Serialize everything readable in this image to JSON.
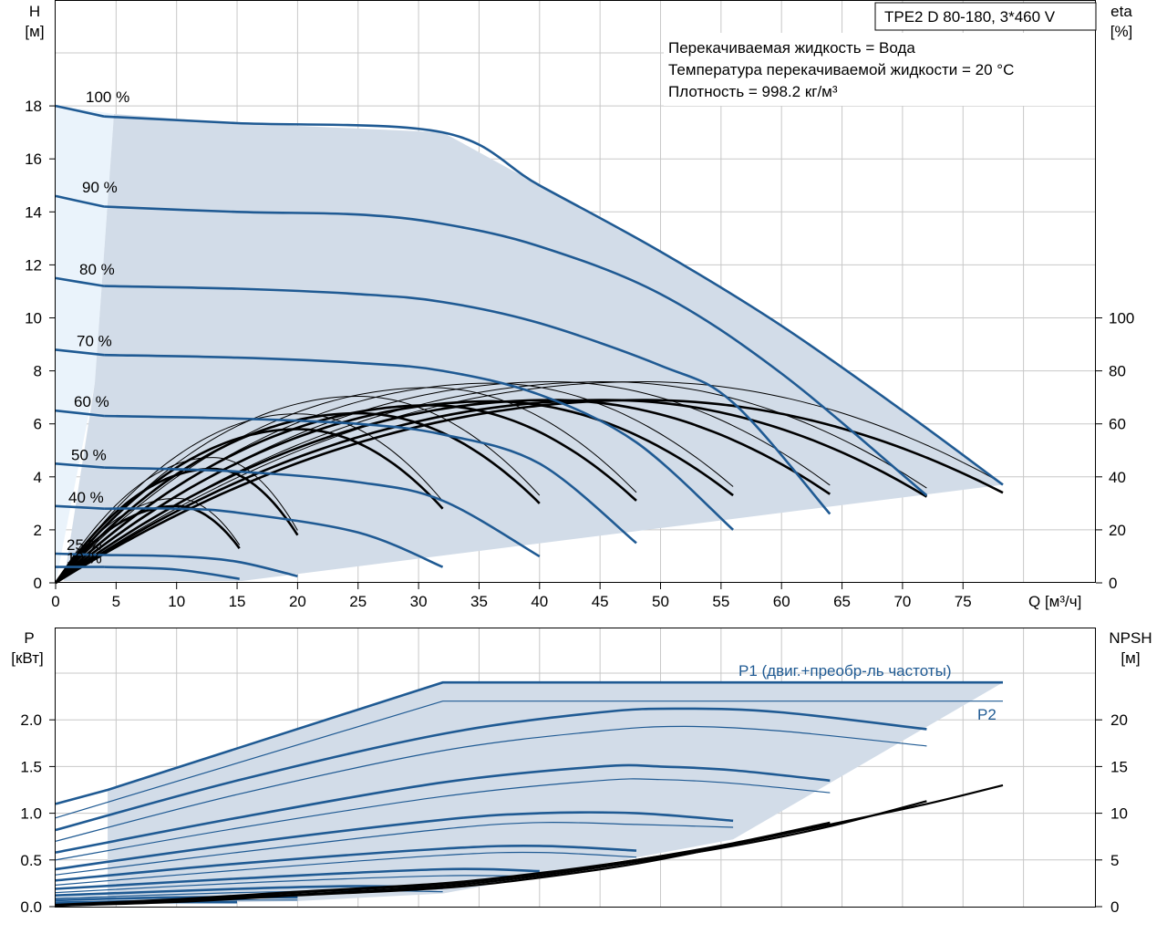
{
  "header": {
    "model": "TPE2 D 80-180, 3*460 V",
    "liquid_info": [
      "Перекачиваемая жидкость = Вода",
      "Температура перекачиваемой жидкости = 20 °C",
      "Плотность = 998.2 кг/м³"
    ]
  },
  "chart_data": [
    {
      "type": "line",
      "name": "head-efficiency",
      "y_left_label": [
        "H",
        "[м]"
      ],
      "y_right_label": [
        "eta",
        "[%]"
      ],
      "x_label": "Q [м³/ч]",
      "xlim": [
        0,
        80
      ],
      "ylim_left": [
        0,
        20
      ],
      "ylim_right": [
        0,
        100
      ],
      "x_ticks": [
        "0",
        "5",
        "10",
        "15",
        "20",
        "25",
        "30",
        "35",
        "40",
        "45",
        "50",
        "55",
        "60",
        "65",
        "70",
        "75"
      ],
      "y_left_ticks": [
        "0",
        "2",
        "4",
        "6",
        "8",
        "10",
        "12",
        "14",
        "16",
        "18"
      ],
      "y_right_ticks": [
        "0",
        "20",
        "40",
        "60",
        "80",
        "100"
      ],
      "speed_labels": [
        {
          "text": "100 %",
          "h": 18.0
        },
        {
          "text": "90 %",
          "h": 14.6
        },
        {
          "text": "80 %",
          "h": 11.5
        },
        {
          "text": "70 %",
          "h": 8.8
        },
        {
          "text": "60 %",
          "h": 6.5
        },
        {
          "text": "50 %",
          "h": 4.5
        },
        {
          "text": "40 %",
          "h": 2.9
        },
        {
          "text": "25 %",
          "h": 1.1
        },
        {
          "text": "10 %",
          "h": 0.6
        }
      ],
      "head_curves": [
        {
          "name": "100 %",
          "qmax": 78.3,
          "points": [
            [
              0,
              18.0
            ],
            [
              4,
              17.6
            ],
            [
              15,
              17.35
            ],
            [
              32,
              17.0
            ],
            [
              40,
              15.0
            ],
            [
              50,
              12.5
            ],
            [
              60,
              9.7
            ],
            [
              70,
              6.5
            ],
            [
              78.3,
              3.7
            ]
          ]
        },
        {
          "name": "90 %",
          "qmax": 72.0,
          "points": [
            [
              0,
              14.6
            ],
            [
              4,
              14.2
            ],
            [
              15,
              14.0
            ],
            [
              25,
              13.9
            ],
            [
              32,
              13.55
            ],
            [
              40,
              12.7
            ],
            [
              50,
              10.9
            ],
            [
              60,
              7.9
            ],
            [
              72,
              3.3
            ]
          ]
        },
        {
          "name": "80 %",
          "qmax": 64.0,
          "points": [
            [
              0,
              11.5
            ],
            [
              4,
              11.2
            ],
            [
              15,
              11.1
            ],
            [
              25,
              10.9
            ],
            [
              32,
              10.6
            ],
            [
              40,
              9.8
            ],
            [
              50,
              8.2
            ],
            [
              56,
              6.8
            ],
            [
              64,
              2.6
            ]
          ]
        },
        {
          "name": "70 %",
          "qmax": 56.0,
          "points": [
            [
              0,
              8.8
            ],
            [
              4,
              8.6
            ],
            [
              15,
              8.5
            ],
            [
              25,
              8.3
            ],
            [
              32,
              8.0
            ],
            [
              40,
              7.1
            ],
            [
              48,
              5.3
            ],
            [
              56,
              2.0
            ]
          ]
        },
        {
          "name": "60 %",
          "qmax": 48.0,
          "points": [
            [
              0,
              6.5
            ],
            [
              4,
              6.3
            ],
            [
              15,
              6.2
            ],
            [
              25,
              6.0
            ],
            [
              32,
              5.6
            ],
            [
              40,
              4.5
            ],
            [
              48,
              1.5
            ]
          ]
        },
        {
          "name": "50 %",
          "qmax": 40.0,
          "points": [
            [
              0,
              4.5
            ],
            [
              4,
              4.35
            ],
            [
              15,
              4.2
            ],
            [
              25,
              3.8
            ],
            [
              32,
              3.1
            ],
            [
              40,
              1.0
            ]
          ]
        },
        {
          "name": "40 %",
          "qmax": 32.0,
          "points": [
            [
              0,
              2.9
            ],
            [
              4,
              2.8
            ],
            [
              10,
              2.8
            ],
            [
              15,
              2.65
            ],
            [
              25,
              1.9
            ],
            [
              32,
              0.6
            ]
          ]
        },
        {
          "name": "25 %",
          "qmax": 20.0,
          "points": [
            [
              0,
              1.1
            ],
            [
              4,
              1.05
            ],
            [
              10,
              1.0
            ],
            [
              15,
              0.8
            ],
            [
              20,
              0.25
            ]
          ]
        },
        {
          "name": "10 %",
          "qmax": 15.2,
          "points": [
            [
              0,
              0.6
            ],
            [
              4,
              0.6
            ],
            [
              10,
              0.5
            ],
            [
              15.2,
              0.15
            ]
          ]
        }
      ],
      "efficiency_curves": [
        {
          "qmax": 15.2,
          "peak_q": 10.0,
          "peak_eta": 29,
          "end_eta": 13
        },
        {
          "qmax": 20.0,
          "peak_q": 13.0,
          "peak_eta": 43,
          "end_eta": 18
        },
        {
          "qmax": 32.0,
          "peak_q": 20.0,
          "peak_eta": 58,
          "end_eta": 28
        },
        {
          "qmax": 40.0,
          "peak_q": 25.0,
          "peak_eta": 64,
          "end_eta": 30
        },
        {
          "qmax": 48.0,
          "peak_q": 31.0,
          "peak_eta": 67,
          "end_eta": 31
        },
        {
          "qmax": 56.0,
          "peak_q": 36.0,
          "peak_eta": 68.5,
          "end_eta": 33
        },
        {
          "qmax": 64.0,
          "peak_q": 41.0,
          "peak_eta": 69,
          "end_eta": 33.5
        },
        {
          "qmax": 72.0,
          "peak_q": 45.5,
          "peak_eta": 69,
          "end_eta": 32.5
        },
        {
          "qmax": 78.3,
          "peak_q": 48.5,
          "peak_eta": 69,
          "end_eta": 34
        }
      ]
    },
    {
      "type": "line",
      "name": "power-npsh",
      "y_left_label": [
        "P",
        "[кВт]"
      ],
      "y_right_label": [
        "NPSH",
        "[м]"
      ],
      "xlim": [
        0,
        80
      ],
      "ylim_left": [
        0,
        2.5
      ],
      "ylim_right": [
        0,
        25
      ],
      "y_left_ticks": [
        "0.0",
        "0.5",
        "1.0",
        "1.5",
        "2.0"
      ],
      "y_right_ticks": [
        "0",
        "5",
        "10",
        "15",
        "20"
      ],
      "p1_label": "P1 (двиг.+преобр-ль частоты)",
      "p2_label": "P2",
      "p1_max": {
        "points": [
          [
            0,
            1.1
          ],
          [
            4.3,
            1.25
          ],
          [
            32,
            2.4
          ],
          [
            78.3,
            2.4
          ]
        ]
      },
      "p2_max": {
        "points": [
          [
            0,
            0.95
          ],
          [
            32,
            2.2
          ],
          [
            78.3,
            2.2
          ]
        ]
      },
      "power_curves": [
        {
          "kind": "P1",
          "points": [
            [
              0,
              0.82
            ],
            [
              15,
              1.35
            ],
            [
              32,
              1.85
            ],
            [
              45,
              2.08
            ],
            [
              52,
              2.12
            ],
            [
              60,
              2.08
            ],
            [
              72,
              1.9
            ]
          ]
        },
        {
          "kind": "P2",
          "points": [
            [
              0,
              0.7
            ],
            [
              15,
              1.2
            ],
            [
              32,
              1.67
            ],
            [
              45,
              1.88
            ],
            [
              52,
              1.93
            ],
            [
              60,
              1.88
            ],
            [
              72,
              1.72
            ]
          ]
        },
        {
          "kind": "P1",
          "points": [
            [
              0,
              0.58
            ],
            [
              15,
              0.95
            ],
            [
              32,
              1.33
            ],
            [
              45,
              1.5
            ],
            [
              50,
              1.5
            ],
            [
              56,
              1.46
            ],
            [
              64,
              1.35
            ]
          ]
        },
        {
          "kind": "P2",
          "points": [
            [
              0,
              0.5
            ],
            [
              15,
              0.84
            ],
            [
              32,
              1.18
            ],
            [
              45,
              1.35
            ],
            [
              50,
              1.36
            ],
            [
              56,
              1.32
            ],
            [
              64,
              1.22
            ]
          ]
        },
        {
          "kind": "P1",
          "points": [
            [
              0,
              0.4
            ],
            [
              15,
              0.67
            ],
            [
              32,
              0.93
            ],
            [
              40,
              1.0
            ],
            [
              48,
              1.0
            ],
            [
              56,
              0.92
            ]
          ]
        },
        {
          "kind": "P2",
          "points": [
            [
              0,
              0.34
            ],
            [
              15,
              0.58
            ],
            [
              32,
              0.83
            ],
            [
              40,
              0.9
            ],
            [
              48,
              0.88
            ],
            [
              56,
              0.85
            ]
          ]
        },
        {
          "kind": "P1",
          "points": [
            [
              0,
              0.28
            ],
            [
              15,
              0.46
            ],
            [
              32,
              0.62
            ],
            [
              40,
              0.65
            ],
            [
              48,
              0.6
            ]
          ]
        },
        {
          "kind": "P2",
          "points": [
            [
              0,
              0.23
            ],
            [
              15,
              0.39
            ],
            [
              32,
              0.55
            ],
            [
              40,
              0.58
            ],
            [
              48,
              0.53
            ]
          ]
        },
        {
          "kind": "P1",
          "points": [
            [
              0,
              0.19
            ],
            [
              15,
              0.3
            ],
            [
              32,
              0.4
            ],
            [
              40,
              0.38
            ]
          ]
        },
        {
          "kind": "P2",
          "points": [
            [
              0,
              0.15
            ],
            [
              15,
              0.25
            ],
            [
              32,
              0.33
            ],
            [
              40,
              0.32
            ]
          ]
        },
        {
          "kind": "P1",
          "points": [
            [
              0,
              0.12
            ],
            [
              15,
              0.19
            ],
            [
              25,
              0.22
            ],
            [
              32,
              0.2
            ]
          ]
        },
        {
          "kind": "P2",
          "points": [
            [
              0,
              0.09
            ],
            [
              15,
              0.15
            ],
            [
              25,
              0.17
            ],
            [
              32,
              0.16
            ]
          ]
        },
        {
          "kind": "P1",
          "points": [
            [
              0,
              0.07
            ],
            [
              10,
              0.1
            ],
            [
              20,
              0.1
            ]
          ]
        },
        {
          "kind": "P2",
          "points": [
            [
              0,
              0.05
            ],
            [
              10,
              0.07
            ],
            [
              20,
              0.07
            ]
          ]
        },
        {
          "kind": "P1",
          "points": [
            [
              0,
              0.04
            ],
            [
              8,
              0.05
            ],
            [
              15,
              0.05
            ]
          ]
        },
        {
          "kind": "P2",
          "points": [
            [
              0,
              0.03
            ],
            [
              8,
              0.04
            ],
            [
              15,
              0.04
            ]
          ]
        }
      ],
      "npsh_curves": [
        {
          "points": [
            [
              0,
              0.2
            ],
            [
              10,
              0.8
            ],
            [
              20,
              1.6
            ],
            [
              32,
              2.5
            ],
            [
              40,
              3.6
            ],
            [
              48,
              5.0
            ],
            [
              56,
              6.7
            ],
            [
              64,
              8.8
            ],
            [
              72,
              11.0
            ],
            [
              78.3,
              13.0
            ]
          ]
        },
        {
          "points": [
            [
              0,
              0.1
            ],
            [
              10,
              0.6
            ],
            [
              20,
              1.3
            ],
            [
              32,
              2.2
            ],
            [
              40,
              3.3
            ],
            [
              48,
              4.8
            ],
            [
              56,
              6.5
            ],
            [
              64,
              8.6
            ],
            [
              72,
              11.3
            ]
          ]
        },
        {
          "points": [
            [
              0,
              0.15
            ],
            [
              10,
              0.7
            ],
            [
              20,
              1.5
            ],
            [
              32,
              2.4
            ],
            [
              40,
              3.5
            ],
            [
              48,
              5.0
            ],
            [
              56,
              6.8
            ],
            [
              64,
              9.0
            ]
          ]
        },
        {
          "points": [
            [
              0,
              0.1
            ],
            [
              10,
              0.5
            ],
            [
              20,
              1.2
            ],
            [
              32,
              2.0
            ],
            [
              40,
              3.1
            ],
            [
              48,
              4.6
            ],
            [
              56,
              6.6
            ]
          ]
        }
      ]
    }
  ]
}
